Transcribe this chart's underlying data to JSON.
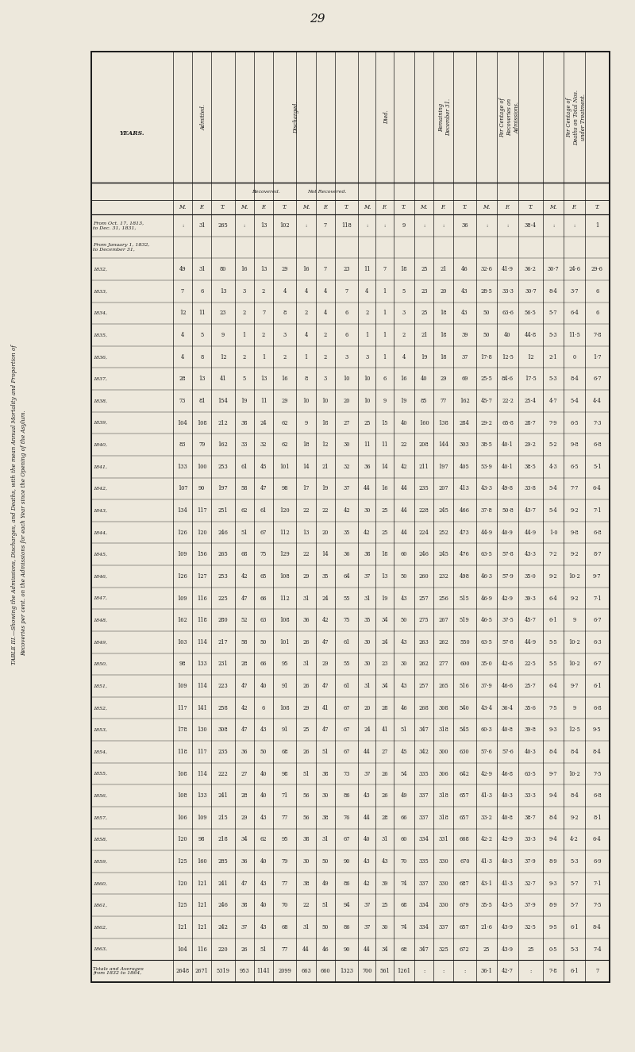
{
  "page_number": "29",
  "bg_color": "#ede8dc",
  "text_color": "#1a1a1a",
  "left_title_line1": "TABLE III.—Showing the Admissions, Discharges, and Deaths, with the mean Annual Mortality and Proportion of",
  "left_title_line2": "Recoveries per cent. on the Admissions for each Year since the Opening of the Asylum.",
  "col_group_headers": [
    "Per Centage of\nDeaths on Total Nos.\nunder Treatment.",
    "Per Centage of\nRecoveries on\nAdmissions.",
    "Remaining\nDecember 31.",
    "Died.",
    "Discharged.",
    "",
    "Admitted.",
    "YEARS."
  ],
  "col_sub_headers_mft": [
    "M.",
    "F.",
    "T."
  ],
  "discharged_sub": [
    "Recovered.",
    "Not Recovered."
  ],
  "year_rows": [
    [
      "From Oct. 17, 1813,\nto Dec. 31, 1831,",
      ":",
      "31",
      "265",
      ":",
      "13",
      "102",
      ":",
      "7",
      "118",
      ":",
      ":",
      "9",
      ":",
      ":",
      "36",
      ":",
      ":",
      "38·4",
      ":",
      ":",
      "1"
    ],
    [
      "From January 1, 1832,\nto December 31,",
      "",
      "",
      "",
      "",
      "",
      "",
      "",
      "",
      "",
      "",
      "",
      "",
      "",
      "",
      "",
      "",
      "",
      "",
      "",
      "",
      ""
    ],
    [
      "1832,",
      "49",
      "31",
      "80",
      "16",
      "13",
      "29",
      "16",
      "7",
      "23",
      "11",
      "7",
      "18",
      "25",
      "21",
      "46",
      "32·6",
      "41·9",
      "36·2",
      "30·7",
      "24·6",
      "29·6"
    ],
    [
      "1833,",
      "7",
      "6",
      "13",
      "3",
      "2",
      "4",
      "4",
      "4",
      "7",
      "4",
      "1",
      "5",
      "23",
      "20",
      "43",
      "28·5",
      "33·3",
      "30·7",
      "8·4",
      "3·7",
      "6"
    ],
    [
      "1834,",
      "12",
      "11",
      "23",
      "2",
      "7",
      "8",
      "2",
      "4",
      "6",
      "2",
      "1",
      "3",
      "25",
      "18",
      "43",
      "50",
      "63·6",
      "56·5",
      "5·7",
      "6·4",
      "6"
    ],
    [
      "1835,",
      "4",
      "5",
      "9",
      "1",
      "2",
      "3",
      "4",
      "2",
      "6",
      "1",
      "1",
      "2",
      "21",
      "18",
      "39",
      "50",
      "40",
      "44·8",
      "5·3",
      "11·5",
      "7·8"
    ],
    [
      "1836,",
      "4",
      "8",
      "12",
      "2",
      "1",
      "2",
      "1",
      "2",
      "3",
      "3",
      "1",
      "4",
      "19",
      "18",
      "37",
      "17·8",
      "12·5",
      "12",
      "2·1",
      "0",
      "1·7"
    ],
    [
      "1837,",
      "28",
      "13",
      "41",
      "5",
      "13",
      "16",
      "8",
      "3",
      "10",
      "10",
      "6",
      "16",
      "40",
      "29",
      "69",
      "25·5",
      "84·6",
      "17·5",
      "5·3",
      "8·4",
      "6·7"
    ],
    [
      "1838,",
      "73",
      "81",
      "154",
      "19",
      "11",
      "29",
      "10",
      "10",
      "20",
      "10",
      "9",
      "19",
      "85",
      "77",
      "162",
      "45·7",
      "22·2",
      "25·4",
      "4·7",
      "5·4",
      "4·4"
    ],
    [
      "1839,",
      "104",
      "108",
      "212",
      "38",
      "24",
      "62",
      "9",
      "18",
      "27",
      "25",
      "15",
      "40",
      "160",
      "138",
      "284",
      "29·2",
      "65·8",
      "28·7",
      "7·9",
      "6·5",
      "7·3"
    ],
    [
      "1840,",
      "83",
      "79",
      "162",
      "33",
      "32",
      "62",
      "18",
      "12",
      "30",
      "11",
      "11",
      "22",
      "208",
      "144",
      "303",
      "38·5",
      "40·1",
      "29·2",
      "5·2",
      "9·8",
      "6·8"
    ],
    [
      "1841,",
      "133",
      "100",
      "253",
      "61",
      "45",
      "101",
      "14",
      "21",
      "32",
      "36",
      "14",
      "42",
      "211",
      "197",
      "405",
      "53·9",
      "40·1",
      "38·5",
      "4·3",
      "6·5",
      "5·1"
    ],
    [
      "1842,",
      "107",
      "90",
      "197",
      "58",
      "47",
      "98",
      "17",
      "19",
      "37",
      "44",
      "16",
      "44",
      "235",
      "207",
      "413",
      "43·3",
      "49·8",
      "33·8",
      "5·4",
      "7·7",
      "6·4"
    ],
    [
      "1843,",
      "134",
      "117",
      "251",
      "62",
      "61",
      "120",
      "22",
      "22",
      "42",
      "30",
      "25",
      "44",
      "228",
      "245",
      "466",
      "37·8",
      "50·8",
      "43·7",
      "5·4",
      "9·2",
      "7·1"
    ],
    [
      "1844,",
      "126",
      "120",
      "246",
      "51",
      "67",
      "112",
      "13",
      "20",
      "35",
      "42",
      "25",
      "44",
      "224",
      "252",
      "473",
      "44·9",
      "40·9",
      "44·9",
      "1·0",
      "9·8",
      "6·8"
    ],
    [
      "1845,",
      "109",
      "156",
      "265",
      "68",
      "75",
      "129",
      "22",
      "14",
      "36",
      "38",
      "18",
      "60",
      "246",
      "245",
      "476",
      "63·5",
      "57·8",
      "43·3",
      "7·2",
      "9·2",
      "8·7"
    ],
    [
      "1846,",
      "126",
      "127",
      "253",
      "42",
      "65",
      "108",
      "29",
      "35",
      "64",
      "37",
      "13",
      "50",
      "260",
      "232",
      "498",
      "46·3",
      "57·9",
      "35·0",
      "9·2",
      "10·2",
      "9·7"
    ],
    [
      "1847,",
      "109",
      "116",
      "225",
      "47",
      "66",
      "112",
      "31",
      "24",
      "55",
      "31",
      "19",
      "43",
      "257",
      "256",
      "515",
      "46·9",
      "42·9",
      "39·3",
      "6·4",
      "9·2",
      "7·1"
    ],
    [
      "1848,",
      "162",
      "118",
      "280",
      "52",
      "63",
      "108",
      "36",
      "42",
      "75",
      "35",
      "34",
      "50",
      "275",
      "267",
      "519",
      "46·5",
      "37·5",
      "45·7",
      "6·1",
      "9",
      "6·7"
    ],
    [
      "1849,",
      "103",
      "114",
      "217",
      "58",
      "50",
      "101",
      "26",
      "47",
      "61",
      "30",
      "24",
      "43",
      "263",
      "262",
      "550",
      "63·5",
      "57·8",
      "44·9",
      "5·5",
      "10·2",
      "6·3"
    ],
    [
      "1850,",
      "98",
      "133",
      "231",
      "28",
      "66",
      "95",
      "31",
      "29",
      "55",
      "30",
      "23",
      "30",
      "262",
      "277",
      "600",
      "35·0",
      "42·6",
      "22·5",
      "5·5",
      "10·2",
      "6·7"
    ],
    [
      "1851,",
      "109",
      "114",
      "223",
      "47",
      "40",
      "91",
      "26",
      "47",
      "61",
      "31",
      "34",
      "43",
      "257",
      "265",
      "516",
      "37·9",
      "46·6",
      "25·7",
      "6·4",
      "9·7",
      "6·1"
    ],
    [
      "1852,",
      "117",
      "141",
      "258",
      "42",
      "6",
      "108",
      "29",
      "41",
      "67",
      "20",
      "28",
      "46",
      "268",
      "308",
      "540",
      "43·4",
      "36·4",
      "35·6",
      "7·5",
      "9",
      "6·8"
    ],
    [
      "1853,",
      "178",
      "130",
      "308",
      "47",
      "43",
      "91",
      "25",
      "47",
      "67",
      "24",
      "41",
      "51",
      "347",
      "318",
      "545",
      "60·3",
      "40·8",
      "39·8",
      "9·3",
      "12·5",
      "9·5"
    ],
    [
      "1854,",
      "118",
      "117",
      "235",
      "36",
      "50",
      "68",
      "26",
      "51",
      "67",
      "44",
      "27",
      "45",
      "342",
      "300",
      "630",
      "57·6",
      "57·6",
      "40·3",
      "8·4",
      "8·4",
      "8·4"
    ],
    [
      "1855,",
      "108",
      "114",
      "222",
      "27",
      "40",
      "98",
      "51",
      "38",
      "73",
      "37",
      "26",
      "54",
      "335",
      "306",
      "642",
      "42·9",
      "46·8",
      "63·5",
      "9·7",
      "10·2",
      "7·5"
    ],
    [
      "1856,",
      "108",
      "133",
      "241",
      "28",
      "40",
      "71",
      "56",
      "30",
      "86",
      "43",
      "26",
      "49",
      "337",
      "318",
      "657",
      "41·3",
      "40·3",
      "33·3",
      "9·4",
      "8·4",
      "6·8"
    ],
    [
      "1857,",
      "106",
      "109",
      "215",
      "29",
      "43",
      "77",
      "56",
      "38",
      "76",
      "44",
      "28",
      "66",
      "337",
      "318",
      "657",
      "33·2",
      "40·8",
      "38·7",
      "8·4",
      "9·2",
      "8·1"
    ],
    [
      "1858,",
      "120",
      "98",
      "218",
      "34",
      "62",
      "95",
      "38",
      "31",
      "67",
      "40",
      "31",
      "60",
      "334",
      "331",
      "668",
      "42·2",
      "42·9",
      "33·3",
      "9·4",
      "4·2",
      "6·4"
    ],
    [
      "1859,",
      "125",
      "160",
      "285",
      "36",
      "40",
      "79",
      "30",
      "50",
      "90",
      "43",
      "43",
      "70",
      "335",
      "330",
      "670",
      "41·3",
      "40·3",
      "37·9",
      "8·9",
      "5·3",
      "6·9"
    ],
    [
      "1860,",
      "120",
      "121",
      "241",
      "47",
      "43",
      "77",
      "38",
      "49",
      "86",
      "42",
      "39",
      "74",
      "337",
      "330",
      "687",
      "43·1",
      "41·3",
      "32·7",
      "9·3",
      "5·7",
      "7·1"
    ],
    [
      "1861,",
      "125",
      "121",
      "246",
      "38",
      "40",
      "70",
      "22",
      "51",
      "94",
      "37",
      "25",
      "68",
      "334",
      "330",
      "679",
      "35·5",
      "43·5",
      "37·9",
      "8·9",
      "5·7",
      "7·5"
    ],
    [
      "1862,",
      "121",
      "121",
      "242",
      "37",
      "43",
      "68",
      "31",
      "50",
      "86",
      "37",
      "30",
      "74",
      "334",
      "337",
      "657",
      "21·6",
      "43·9",
      "32·5",
      "9·5",
      "6·1",
      "8·4"
    ],
    [
      "1863,",
      "104",
      "116",
      "220",
      "26",
      "51",
      "77",
      "44",
      "46",
      "90",
      "44",
      "34",
      "68",
      "347",
      "325",
      "672",
      "25",
      "43·9",
      "25",
      "0·5",
      "5·3",
      "7·4"
    ],
    [
      "Totals and Averages\nfrom 1832 to 1864,",
      "2648",
      "2671",
      "5319",
      "953",
      "1141",
      "2099",
      "663",
      "660",
      "1323",
      "700",
      "561",
      "1261",
      ":",
      ":",
      ":",
      "36·1",
      "42·7",
      ":",
      "7·8",
      "6·1",
      "7"
    ]
  ]
}
